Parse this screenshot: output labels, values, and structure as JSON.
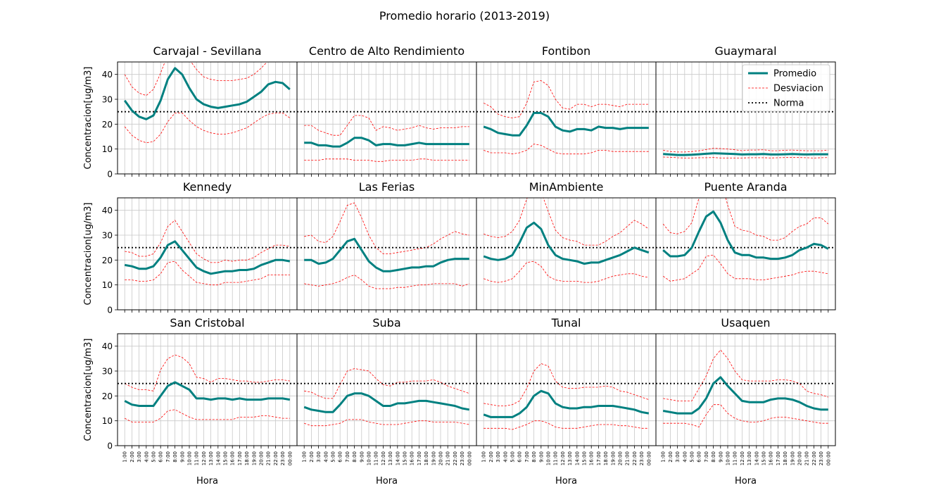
{
  "figure": {
    "suptitle": "Promedio horario (2013-2019)",
    "xlabel": "Hora",
    "ylabel": "Concentracion[ug/m3]"
  },
  "legend": {
    "items": [
      "Promedio",
      "Desviacion",
      "Norma"
    ],
    "location": "top-right of Guaymaral panel"
  },
  "colors": {
    "mean": "#008080",
    "deviation": "#ff0000",
    "norm": "#000000",
    "grid": "#c8c8c8"
  },
  "chart_data": {
    "type": "line",
    "norm_value": 25,
    "ylim": [
      0,
      45
    ],
    "yticks": [
      0,
      10,
      20,
      30,
      40
    ],
    "grid": true,
    "hours": [
      "1:00",
      "2:00",
      "3:00",
      "4:00",
      "5:00",
      "6:00",
      "7:00",
      "8:00",
      "9:00",
      "10:00",
      "11:00",
      "12:00",
      "13:00",
      "14:00",
      "15:00",
      "16:00",
      "17:00",
      "18:00",
      "19:00",
      "20:00",
      "21:00",
      "22:00",
      "23:00",
      "00:00"
    ],
    "panels": [
      {
        "title": "Carvajal - Sevillana",
        "mean": [
          29.5,
          25.5,
          23,
          22,
          23.5,
          29.5,
          38,
          42.5,
          40,
          34.5,
          30,
          28,
          27,
          26.5,
          27,
          27.5,
          28,
          29,
          31,
          33,
          36,
          37,
          36.5,
          34
        ],
        "upper": [
          40,
          35,
          32.5,
          31.5,
          34,
          40.5,
          48,
          52,
          50,
          46,
          42,
          39,
          38,
          37.5,
          37.5,
          37.5,
          38,
          38.5,
          40,
          42.5,
          45.5,
          48,
          49,
          47
        ],
        "lower": [
          19,
          15.5,
          13.5,
          12.5,
          13,
          16,
          21,
          24.5,
          24.5,
          21.5,
          19,
          17.5,
          16.5,
          16,
          16,
          16.5,
          17.5,
          18.5,
          20.5,
          22.5,
          24,
          24.5,
          24.5,
          22.5
        ]
      },
      {
        "title": "Centro de Alto Rendimiento",
        "mean": [
          12.5,
          12.5,
          11.5,
          11.5,
          11,
          11,
          12.5,
          14.5,
          14.5,
          13.5,
          11.5,
          12,
          12,
          11.5,
          11.5,
          12,
          12.5,
          12,
          12,
          12,
          12,
          12,
          12,
          12
        ],
        "upper": [
          19.5,
          19.5,
          17.5,
          16.5,
          15.5,
          15.5,
          19.5,
          23.5,
          23.5,
          22.5,
          17.5,
          19,
          18.5,
          17.5,
          18,
          18.5,
          19.5,
          18.5,
          18,
          18.5,
          18.5,
          18.5,
          19,
          19
        ],
        "lower": [
          5.5,
          5.5,
          5.5,
          6,
          6,
          6,
          6,
          5.5,
          5.5,
          5.5,
          5,
          5,
          5.5,
          5.5,
          5.5,
          5.5,
          6,
          6,
          5.5,
          5.5,
          5.5,
          5.5,
          5.5,
          5.5
        ]
      },
      {
        "title": "Fontibon",
        "mean": [
          19,
          18,
          16.5,
          16,
          15.5,
          15.5,
          19.5,
          24.5,
          24.5,
          23,
          19,
          17.5,
          17,
          18,
          18,
          17.5,
          19,
          18.5,
          18.5,
          18,
          18.5,
          18.5,
          18.5,
          18.5
        ],
        "upper": [
          28.5,
          27,
          24,
          23,
          22.5,
          23,
          28.5,
          37,
          37.5,
          35.5,
          30,
          26.5,
          26,
          28,
          28,
          27,
          28,
          28,
          27.5,
          27,
          28,
          28,
          28,
          28
        ],
        "lower": [
          9.5,
          8.5,
          8.5,
          8.5,
          8,
          8.5,
          9.5,
          12,
          11.5,
          10,
          8.5,
          8,
          8,
          8,
          8,
          8.5,
          9.5,
          9.5,
          9,
          9,
          9,
          9,
          9,
          9
        ]
      },
      {
        "title": "Guaymaral",
        "mean": [
          8,
          7.8,
          7.6,
          7.6,
          7.7,
          7.9,
          8.1,
          8.3,
          8.2,
          8.1,
          8,
          7.8,
          7.9,
          7.9,
          8,
          7.8,
          7.8,
          7.9,
          8,
          7.9,
          7.8,
          7.9,
          7.9,
          7.9
        ],
        "upper": [
          9.5,
          9,
          8.8,
          8.8,
          9,
          9.3,
          9.8,
          10.3,
          10.2,
          10,
          9.7,
          9.3,
          9.6,
          9.6,
          9.7,
          9.3,
          9.3,
          9.5,
          9.6,
          9.4,
          9.3,
          9.3,
          9.3,
          9.5
        ],
        "lower": [
          6.8,
          6.7,
          6.5,
          6.4,
          6.4,
          6.5,
          6.5,
          6.6,
          6.4,
          6.4,
          6.4,
          6.4,
          6.5,
          6.5,
          6.5,
          6.4,
          6.5,
          6.6,
          6.6,
          6.6,
          6.5,
          6.4,
          6.5,
          6.6
        ]
      },
      {
        "title": "Kennedy",
        "mean": [
          18,
          17.5,
          16.5,
          16.5,
          17.5,
          21,
          26,
          27.5,
          24,
          20.5,
          17,
          15.5,
          14.5,
          15,
          15.5,
          15.5,
          16,
          16,
          16.5,
          18,
          19,
          20,
          20,
          19.5
        ],
        "upper": [
          23.5,
          23,
          21.5,
          21.5,
          22.5,
          27,
          33.5,
          36,
          31.5,
          27,
          22.5,
          20.5,
          19,
          19,
          20,
          19.5,
          20,
          20,
          21,
          23,
          24.5,
          26,
          26,
          25.5
        ],
        "lower": [
          12,
          12,
          11.5,
          11.5,
          12,
          14.5,
          19,
          19.5,
          16,
          13.5,
          11,
          10.5,
          10,
          10,
          11,
          11,
          11,
          11.5,
          12,
          12.5,
          14,
          14,
          14,
          14
        ]
      },
      {
        "title": "Las Ferias",
        "mean": [
          20,
          20,
          18.5,
          19,
          20.5,
          24,
          27.5,
          28.5,
          24,
          19.5,
          17,
          15.5,
          15.5,
          16,
          16.5,
          17,
          17,
          17.5,
          17.5,
          19,
          20,
          20.5,
          20.5,
          20.5
        ],
        "upper": [
          29.5,
          30,
          27.5,
          27,
          29.5,
          35.5,
          42,
          43,
          37,
          30,
          25,
          22.5,
          22.5,
          23,
          23.5,
          24,
          24.5,
          25,
          26.5,
          28.5,
          30,
          31.5,
          30.5,
          30
        ],
        "lower": [
          10.5,
          10,
          9.5,
          10,
          10.5,
          11.5,
          13,
          14,
          12,
          9.5,
          8.5,
          8.5,
          8.5,
          9,
          9,
          9.5,
          10,
          10,
          10.5,
          10.5,
          10.5,
          10.5,
          9.5,
          10.5
        ]
      },
      {
        "title": "MinAmbiente",
        "mean": [
          21.5,
          20.5,
          20,
          20.5,
          22,
          27,
          33,
          35,
          32.5,
          26,
          22,
          20.5,
          20,
          19.5,
          18.5,
          19,
          19,
          20,
          21,
          22,
          23.5,
          25,
          24,
          23
        ],
        "upper": [
          30.5,
          29.5,
          29,
          29.5,
          31.5,
          36,
          44.5,
          50.5,
          47.5,
          39.5,
          32,
          29,
          28,
          27.5,
          26,
          26,
          26,
          27.5,
          29.5,
          31,
          33.5,
          36,
          34.5,
          32.5
        ],
        "lower": [
          12.5,
          11.5,
          11,
          11.5,
          12.5,
          15.5,
          19,
          19.5,
          17.5,
          13.5,
          12,
          11.5,
          11.5,
          11.5,
          11,
          11,
          11.5,
          12.5,
          13.5,
          14,
          14.5,
          14.5,
          13.5,
          13
        ]
      },
      {
        "title": "Puente Aranda",
        "mean": [
          24,
          21.5,
          21.5,
          22,
          25,
          31.5,
          37.5,
          39.5,
          35,
          28,
          23,
          22,
          22,
          21,
          21,
          20.5,
          20.5,
          21,
          22,
          24,
          25,
          26.5,
          26,
          24.5
        ],
        "upper": [
          34.5,
          31,
          30.5,
          31.5,
          35,
          45,
          54,
          57,
          53,
          42,
          33.5,
          32,
          31.5,
          30,
          29.5,
          28,
          28,
          29,
          31.5,
          33.5,
          34.5,
          37,
          37,
          34.5
        ],
        "lower": [
          13.5,
          11.5,
          12,
          12.5,
          14.5,
          16.5,
          21.5,
          22,
          18.5,
          14.5,
          12.5,
          12.5,
          12.5,
          12,
          12,
          12.5,
          13,
          13.5,
          14,
          15,
          15.5,
          15.5,
          15,
          14.5
        ]
      },
      {
        "title": "San Cristobal",
        "mean": [
          18,
          16.5,
          16,
          16,
          16,
          20,
          24,
          25.5,
          24,
          22.5,
          19,
          19,
          18.5,
          19,
          19,
          18.5,
          19,
          18.5,
          18.5,
          18.5,
          19,
          19,
          19,
          18.5
        ],
        "upper": [
          25,
          23.5,
          22.5,
          22.5,
          22,
          30.5,
          35,
          36.5,
          35.5,
          33,
          27.5,
          27,
          25.5,
          27,
          27,
          26.5,
          26,
          26,
          25.5,
          25.5,
          26,
          26.5,
          26.5,
          26
        ],
        "lower": [
          11,
          9.5,
          9.5,
          9.5,
          9.5,
          11,
          14,
          14.5,
          13,
          11.5,
          10.5,
          10.5,
          10.5,
          10.5,
          10.5,
          10.5,
          11.5,
          11.5,
          11.5,
          12,
          12,
          11.5,
          11,
          11
        ]
      },
      {
        "title": "Suba",
        "mean": [
          15.5,
          14.5,
          14,
          13.5,
          13.5,
          16.5,
          20,
          21,
          21,
          20,
          18,
          16,
          16,
          17,
          17,
          17.5,
          18,
          18,
          17.5,
          17,
          16.5,
          16,
          15,
          14.5
        ],
        "upper": [
          22,
          21.5,
          20,
          19,
          19,
          24.5,
          30,
          31,
          30.5,
          30,
          27,
          24.5,
          24,
          25.5,
          25.5,
          26,
          26,
          26,
          26.5,
          25.5,
          24,
          23,
          22,
          21
        ],
        "lower": [
          9,
          8,
          8,
          8,
          8.5,
          9,
          10.5,
          10.5,
          10.5,
          9.5,
          9,
          8.5,
          8.5,
          8.5,
          9,
          9.5,
          10,
          10,
          9.5,
          9.5,
          9.5,
          9.5,
          9,
          8.5
        ]
      },
      {
        "title": "Tunal",
        "mean": [
          12.5,
          11.5,
          11.5,
          11.5,
          11.5,
          13,
          15.5,
          20,
          22,
          21,
          17,
          15.5,
          15,
          15,
          15.5,
          15.5,
          16,
          16,
          16,
          15.5,
          15,
          14.5,
          13.5,
          13
        ],
        "upper": [
          17,
          16.5,
          16,
          16,
          16.5,
          18,
          23,
          30,
          33,
          32,
          26,
          23.5,
          23,
          23,
          23.5,
          23.5,
          23.5,
          24,
          23.5,
          22,
          21.5,
          20.5,
          19.5,
          18.5
        ],
        "lower": [
          7,
          7,
          7,
          7,
          6.5,
          7.5,
          8.5,
          10,
          10,
          9,
          7.5,
          7,
          7,
          7,
          7.5,
          8,
          8.5,
          8.5,
          8.5,
          8,
          8,
          7.5,
          7,
          7
        ]
      },
      {
        "title": "Usaquen",
        "mean": [
          14,
          13.5,
          13,
          13,
          13,
          15,
          19,
          25,
          27.5,
          24,
          21,
          18,
          17.5,
          17.5,
          17.5,
          18.5,
          19,
          19,
          18.5,
          17.5,
          16,
          15,
          14.5,
          14.5
        ],
        "upper": [
          19,
          18.5,
          18,
          18,
          18,
          23,
          28,
          35,
          38.5,
          35,
          30,
          26.5,
          26,
          26,
          26,
          26,
          26.5,
          26.5,
          26,
          25,
          22,
          21,
          20.5,
          19.5
        ],
        "lower": [
          9,
          9,
          9,
          9,
          8.5,
          7.5,
          12.5,
          16.5,
          16.5,
          13,
          11,
          10,
          9.5,
          9.5,
          10,
          11,
          11.5,
          11.5,
          11,
          10.5,
          10,
          9.5,
          9,
          9
        ]
      }
    ]
  }
}
